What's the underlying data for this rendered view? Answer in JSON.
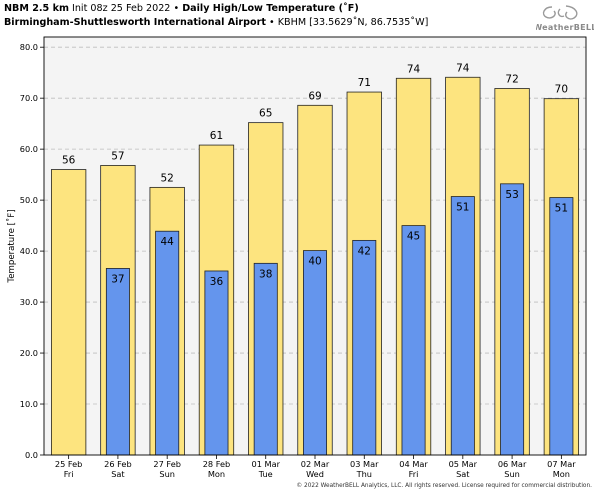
{
  "header": {
    "model": "NBM 2.5 km",
    "init": "Init 08z 25 Feb 2022",
    "sep": "•",
    "product": "Daily High/Low Temperature (˚F)",
    "station_name": "Birmingham-Shuttlesworth International Airport",
    "station_info": "KBHM [33.5629˚N, 86.7535˚W]"
  },
  "logo": {
    "text": "WeatherBELL",
    "icon": "weatherbell-swirl-logo"
  },
  "footer": {
    "copyright": "© 2022 WeatherBELL Analytics, LLC. All rights reserved. License required for commercial distribution."
  },
  "chart_data": {
    "type": "bar",
    "ylabel": "Temperature [˚F]",
    "ylim": [
      0,
      82
    ],
    "yticks": [
      0,
      10,
      20,
      30,
      40,
      50,
      60,
      70,
      80
    ],
    "ytick_labels": [
      "0.0",
      "10.0",
      "20.0",
      "30.0",
      "40.0",
      "50.0",
      "60.0",
      "70.0",
      "80.0"
    ],
    "grid": true,
    "categories": [
      {
        "date": "25 Feb",
        "day": "Fri"
      },
      {
        "date": "26 Feb",
        "day": "Sat"
      },
      {
        "date": "27 Feb",
        "day": "Sun"
      },
      {
        "date": "28 Feb",
        "day": "Mon"
      },
      {
        "date": "01 Mar",
        "day": "Tue"
      },
      {
        "date": "02 Mar",
        "day": "Wed"
      },
      {
        "date": "03 Mar",
        "day": "Thu"
      },
      {
        "date": "04 Mar",
        "day": "Fri"
      },
      {
        "date": "05 Mar",
        "day": "Sat"
      },
      {
        "date": "06 Mar",
        "day": "Sun"
      },
      {
        "date": "07 Mar",
        "day": "Mon"
      }
    ],
    "series": [
      {
        "color": "#fde47f",
        "values": [
          56,
          56.8,
          52.5,
          60.8,
          65.2,
          68.6,
          71.2,
          73.9,
          74.1,
          71.9,
          69.9
        ],
        "labels": [
          "56",
          "57",
          "52",
          "61",
          "65",
          "69",
          "71",
          "74",
          "74",
          "72",
          "70"
        ]
      },
      {
        "color": "#6495ed",
        "values": [
          null,
          36.6,
          43.9,
          36.1,
          37.6,
          40.1,
          42.1,
          45.0,
          50.7,
          53.2,
          50.5
        ],
        "labels": [
          null,
          "37",
          "44",
          "36",
          "38",
          "40",
          "42",
          "45",
          "51",
          "53",
          "51"
        ]
      }
    ]
  }
}
